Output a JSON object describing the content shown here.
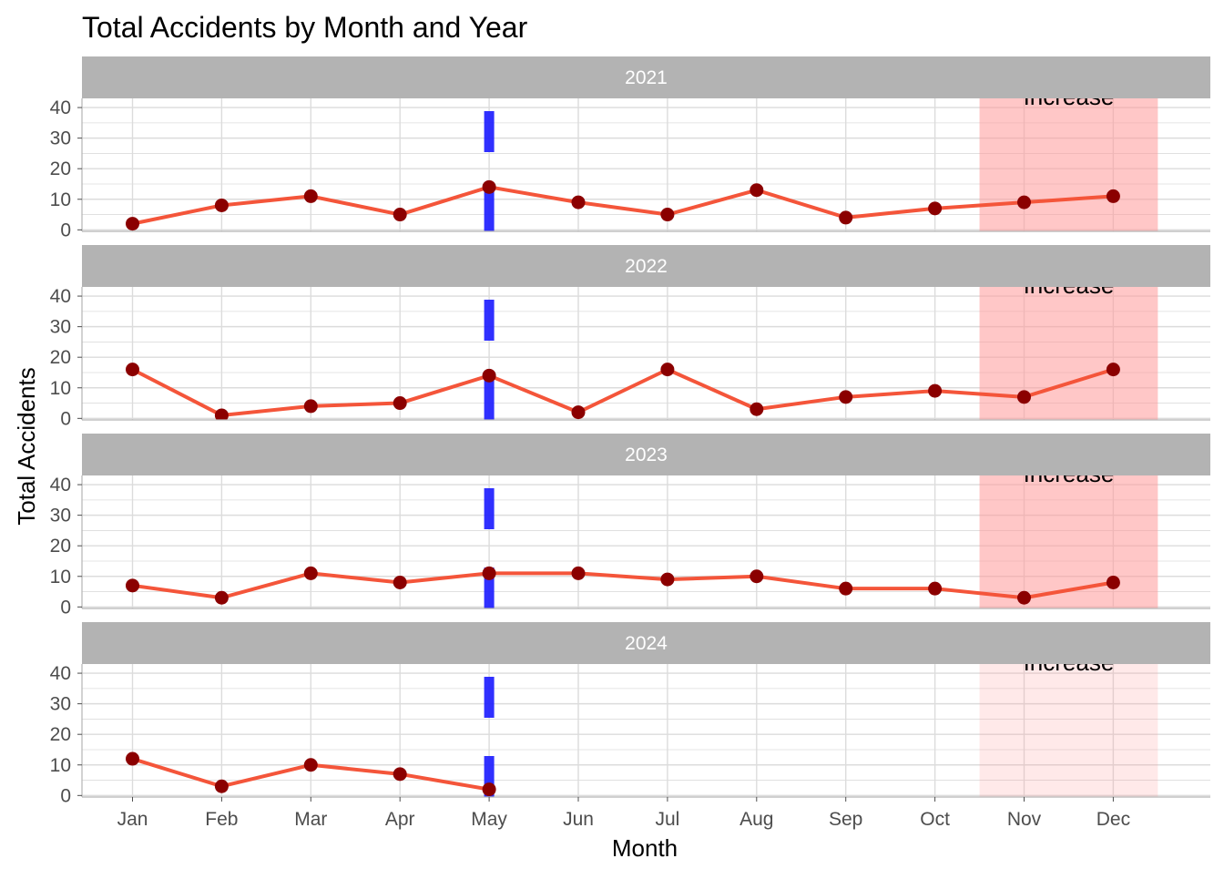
{
  "chart_data": {
    "type": "line",
    "title": "Total Accidents by Month and Year",
    "xlabel": "Month",
    "ylabel": "Total Accidents",
    "categories": [
      "Jan",
      "Feb",
      "Mar",
      "Apr",
      "May",
      "Jun",
      "Jul",
      "Aug",
      "Sep",
      "Oct",
      "Nov",
      "Dec"
    ],
    "yticks": [
      0,
      10,
      20,
      30,
      40
    ],
    "ylim": [
      -0.5,
      43
    ],
    "grid": true,
    "facet_by": "Year",
    "facets": [
      {
        "name": "2021",
        "values": [
          2,
          8,
          11,
          5,
          14,
          9,
          5,
          13,
          4,
          7,
          9,
          11
        ]
      },
      {
        "name": "2022",
        "values": [
          16,
          1,
          4,
          5,
          14,
          2,
          16,
          3,
          7,
          9,
          7,
          16
        ]
      },
      {
        "name": "2023",
        "values": [
          7,
          3,
          11,
          8,
          11,
          11,
          9,
          10,
          6,
          6,
          3,
          8
        ]
      },
      {
        "name": "2024",
        "values": [
          12,
          3,
          10,
          7,
          2,
          null,
          null,
          null,
          null,
          null,
          null,
          null
        ]
      }
    ],
    "vline": {
      "at": "May",
      "style": "dashed"
    },
    "highlight_band": {
      "from": "Nov",
      "to": "Dec",
      "label": "Increase"
    },
    "colors": {
      "line": "#f4553a",
      "points": "#8b0000",
      "vline": "#1a1aff",
      "band": "#ff9999",
      "strip": "#b3b3b3",
      "grid": "#dcdcdc"
    }
  }
}
